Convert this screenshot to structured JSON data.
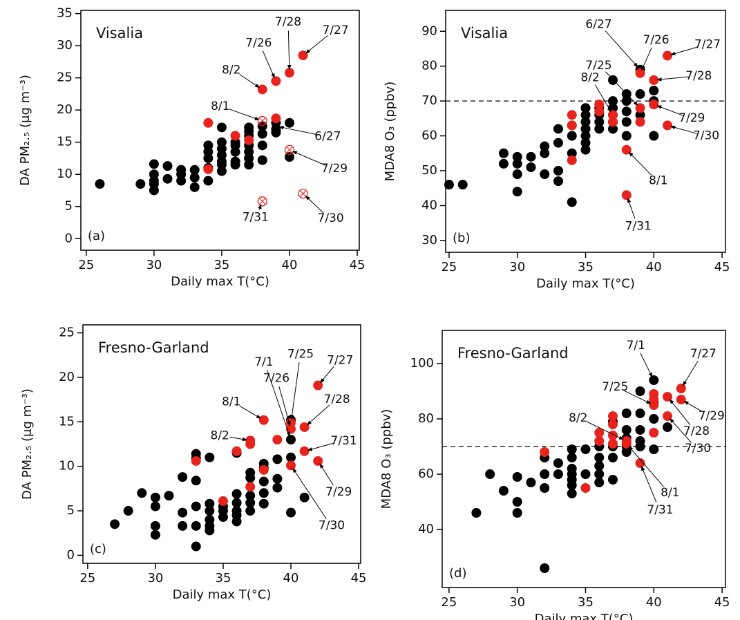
{
  "chart_data": [
    {
      "type": "scatter",
      "title": "Visalia",
      "panel_label": "(a)",
      "x_label": "Daily max T(°C)",
      "y_label": "DA PM₂.₅ (μg m⁻³)",
      "xlim": [
        24.6,
        45.15
      ],
      "xticks": [
        25,
        30,
        35,
        40,
        45
      ],
      "ylim": [
        -1.8,
        35.5
      ],
      "yticks": [
        0,
        5,
        10,
        15,
        20,
        25,
        30,
        35
      ],
      "series": [
        {
          "color": "#000000",
          "marker": "filled",
          "x": [
            26,
            29,
            30,
            30,
            30,
            30,
            30,
            31,
            31,
            32,
            32,
            32,
            33,
            33,
            33,
            34,
            34,
            34,
            34,
            34,
            35,
            35,
            35,
            35,
            35,
            35,
            35,
            36,
            36,
            36,
            36,
            36,
            37,
            37,
            37,
            37,
            37,
            37,
            37,
            38,
            38,
            38,
            38,
            39,
            39,
            39,
            40,
            40
          ],
          "values": [
            8.5,
            8.5,
            11.6,
            10,
            9,
            8.5,
            7.5,
            11.3,
            9.3,
            10.7,
            10,
            9,
            10.7,
            9.5,
            8,
            13.5,
            14.5,
            12.5,
            11,
            9,
            17.3,
            15,
            14,
            13,
            12,
            11.5,
            10.5,
            15,
            13.5,
            12,
            11.5,
            14.5,
            17.3,
            16,
            14.5,
            13.5,
            12.5,
            11.5,
            16.7,
            17.5,
            16.3,
            14.5,
            12.2,
            18,
            17,
            16.5,
            18,
            12.7
          ]
        },
        {
          "color": "#e8221c",
          "marker": "filled",
          "x": [
            34,
            34,
            36,
            37,
            38,
            39,
            40,
            41,
            39
          ],
          "values": [
            18,
            10.8,
            16,
            15.3,
            23.2,
            24.5,
            25.8,
            28.5,
            18.7
          ]
        },
        {
          "color": "#e8221c",
          "marker": "open",
          "x": [
            38,
            40,
            41,
            38
          ],
          "values": [
            18.3,
            13.8,
            7,
            5.8
          ]
        }
      ],
      "annotations": [
        {
          "label": "7/28",
          "x": 40,
          "y": 25.8
        },
        {
          "label": "7/27",
          "x": 41,
          "y": 28.5
        },
        {
          "label": "7/26",
          "x": 39,
          "y": 24.5
        },
        {
          "label": "8/2",
          "x": 38,
          "y": 23.2
        },
        {
          "label": "8/1",
          "x": 38,
          "y": 18.3
        },
        {
          "label": "6/27",
          "x": 39,
          "y": 17.5
        },
        {
          "label": "7/29",
          "x": 40,
          "y": 13.8
        },
        {
          "label": "7/30",
          "x": 41,
          "y": 7
        },
        {
          "label": "7/31",
          "x": 38,
          "y": 5.8
        }
      ]
    },
    {
      "type": "scatter",
      "title": "Visalia",
      "panel_label": "(b)",
      "x_label": "Daily max T(°C)",
      "y_label": "MDA8 O₃ (ppbv)",
      "xlim": [
        24.75,
        45.25
      ],
      "xticks": [
        25,
        30,
        35,
        40,
        45
      ],
      "ylim": [
        26.6,
        96
      ],
      "yticks": [
        30,
        40,
        50,
        60,
        70,
        80,
        90
      ],
      "reference_line": 70,
      "series": [
        {
          "color": "#000000",
          "marker": "filled",
          "x": [
            25,
            26,
            29,
            29,
            30,
            30,
            30,
            30,
            31,
            31,
            32,
            32,
            32,
            33,
            33,
            33,
            33,
            34,
            34,
            34,
            34,
            35,
            35,
            35,
            35,
            35,
            35,
            35,
            36,
            36,
            36,
            36,
            37,
            37,
            37,
            37,
            37,
            37,
            38,
            38,
            38,
            38,
            38,
            39,
            39,
            39,
            40,
            40,
            40
          ],
          "values": [
            46,
            46,
            55,
            52,
            54,
            52,
            49,
            44,
            54,
            51,
            57,
            55,
            49,
            62,
            58,
            50,
            47,
            63,
            60,
            55,
            41,
            68,
            66,
            64,
            62,
            60,
            58,
            56,
            68,
            66,
            64,
            62,
            76,
            70,
            68,
            66,
            64,
            62,
            72,
            70,
            67,
            64,
            60,
            79,
            72,
            66,
            73,
            70,
            60
          ]
        },
        {
          "color": "#e8221c",
          "marker": "filled",
          "x": [
            34,
            34,
            34,
            36,
            36,
            37,
            37,
            38,
            38,
            39,
            39,
            39,
            40,
            40,
            41,
            41
          ],
          "values": [
            66,
            63,
            53,
            69,
            67,
            66,
            64,
            56,
            43,
            78,
            68,
            64,
            76,
            69,
            83,
            63
          ]
        }
      ],
      "annotations": [
        {
          "label": "6/27",
          "x": 39,
          "y": 79
        },
        {
          "label": "7/26",
          "x": 39,
          "y": 78
        },
        {
          "label": "7/27",
          "x": 41,
          "y": 83
        },
        {
          "label": "7/28",
          "x": 40,
          "y": 76
        },
        {
          "label": "7/25",
          "x": 39,
          "y": 68
        },
        {
          "label": "8/2",
          "x": 37,
          "y": 66
        },
        {
          "label": "7/29",
          "x": 40,
          "y": 69
        },
        {
          "label": "7/30",
          "x": 41,
          "y": 63
        },
        {
          "label": "8/1",
          "x": 38,
          "y": 56
        },
        {
          "label": "7/31",
          "x": 38,
          "y": 43
        }
      ]
    },
    {
      "type": "scatter",
      "title": "Fresno-Garland",
      "panel_label": "(c)",
      "x_label": "Daily max T(°C)",
      "y_label": "DA PM₂.₅ (μg m⁻³)",
      "xlim": [
        24.65,
        45.15
      ],
      "xticks": [
        25,
        30,
        35,
        40,
        45
      ],
      "ylim": [
        -0.9,
        25.9
      ],
      "yticks": [
        0,
        5,
        10,
        15,
        20,
        25
      ],
      "series": [
        {
          "color": "#000000",
          "marker": "filled",
          "x": [
            27,
            28,
            29,
            30,
            30,
            30,
            30,
            31,
            32,
            32,
            32,
            33,
            33,
            33,
            33,
            33,
            33,
            34,
            34,
            34,
            34,
            34,
            34,
            35,
            35,
            35,
            36,
            36,
            36,
            36,
            36,
            36,
            37,
            37,
            37,
            37,
            37,
            38,
            38,
            38,
            38,
            38,
            39,
            39,
            39,
            40,
            40,
            40,
            40,
            41
          ],
          "values": [
            3.5,
            5,
            7,
            6.5,
            5.5,
            3.3,
            2.3,
            6.7,
            8.8,
            4.8,
            3.3,
            11.4,
            10.9,
            8.4,
            5.5,
            3.3,
            1,
            11,
            5.8,
            5,
            4,
            3.3,
            2.8,
            5.5,
            5,
            4.3,
            11.5,
            6.9,
            5.9,
            5,
            4.5,
            3.8,
            9.3,
            8.7,
            6.7,
            5.9,
            5,
            10.3,
            9.8,
            8.3,
            7,
            5.8,
            10.8,
            8.6,
            7.6,
            15.2,
            13,
            11,
            4.8,
            6.5
          ]
        },
        {
          "color": "#e8221c",
          "marker": "filled",
          "x": [
            33,
            35,
            36,
            37,
            37,
            37,
            38,
            38,
            39,
            40,
            40,
            40,
            41,
            41,
            42,
            42
          ],
          "values": [
            10.6,
            6.1,
            11.7,
            12.9,
            12.5,
            7.7,
            15.2,
            9.6,
            13,
            14.9,
            14.2,
            10.1,
            14.4,
            11.7,
            19.1,
            10.6
          ]
        }
      ],
      "annotations": [
        {
          "label": "7/27",
          "x": 42,
          "y": 19.1
        },
        {
          "label": "7/25",
          "x": 40,
          "y": 14.9
        },
        {
          "label": "7/26",
          "x": 40,
          "y": 14.2
        },
        {
          "label": "7/1",
          "x": 40,
          "y": 13
        },
        {
          "label": "8/1",
          "x": 38,
          "y": 15.2
        },
        {
          "label": "7/28",
          "x": 41,
          "y": 14.4
        },
        {
          "label": "8/2",
          "x": 37,
          "y": 12.9
        },
        {
          "label": "7/31",
          "x": 41,
          "y": 11.7
        },
        {
          "label": "7/29",
          "x": 42,
          "y": 10.6
        },
        {
          "label": "7/30",
          "x": 40,
          "y": 10.1
        }
      ]
    },
    {
      "type": "scatter",
      "title": "Fresno-Garland",
      "panel_label": "(d)",
      "x_label": "Daily max T(°C)",
      "y_label": "MDA8 O₃ (ppbv)",
      "xlim": [
        24.5,
        45.25
      ],
      "xticks": [
        25,
        30,
        35,
        40,
        45
      ],
      "ylim": [
        19,
        112
      ],
      "yticks": [
        40,
        60,
        80,
        100
      ],
      "reference_line": 70,
      "series": [
        {
          "color": "#000000",
          "marker": "filled",
          "x": [
            27,
            28,
            29,
            30,
            30,
            30,
            31,
            32,
            32,
            32,
            32,
            33,
            33,
            34,
            34,
            34,
            34,
            34,
            34,
            34,
            35,
            35,
            36,
            36,
            36,
            36,
            36,
            37,
            37,
            37,
            37,
            38,
            38,
            38,
            38,
            38,
            39,
            39,
            39,
            39,
            39,
            40,
            40,
            40,
            40,
            41
          ],
          "values": [
            46,
            60,
            54,
            59,
            50,
            46,
            57,
            66,
            60,
            55,
            26,
            64,
            60,
            69,
            66,
            62,
            60,
            58,
            56,
            53,
            69,
            60,
            70,
            66,
            63,
            60,
            57,
            79,
            70,
            66,
            58,
            82,
            76,
            73,
            70,
            68,
            90,
            82,
            76,
            72,
            70,
            94,
            86,
            80,
            69,
            77
          ]
        },
        {
          "color": "#e8221c",
          "marker": "filled",
          "x": [
            32,
            35,
            36,
            36,
            37,
            37,
            37,
            37,
            38,
            38,
            39,
            40,
            40,
            40,
            40,
            41,
            41,
            42,
            42
          ],
          "values": [
            68,
            55,
            75,
            72,
            81,
            78,
            74,
            71,
            72,
            71,
            64,
            89,
            87,
            85,
            75,
            88,
            81,
            91,
            87
          ]
        }
      ],
      "annotations": [
        {
          "label": "7/1",
          "x": 40,
          "y": 94
        },
        {
          "label": "7/27",
          "x": 42,
          "y": 91
        },
        {
          "label": "7/25",
          "x": 40,
          "y": 85
        },
        {
          "label": "7/29",
          "x": 42,
          "y": 87
        },
        {
          "label": "7/28",
          "x": 41,
          "y": 88
        },
        {
          "label": "7/30",
          "x": 41,
          "y": 81
        },
        {
          "label": "8/2",
          "x": 38,
          "y": 72
        },
        {
          "label": "8/1",
          "x": 38,
          "y": 71
        },
        {
          "label": "7/31",
          "x": 39,
          "y": 64
        }
      ]
    }
  ]
}
